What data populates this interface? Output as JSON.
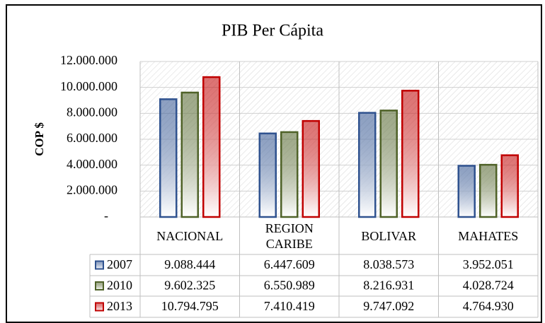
{
  "chart_data": {
    "type": "bar",
    "title": "PIB Per Cápita",
    "y_label": "COP $",
    "categories": [
      "NACIONAL",
      "REGION CARIBE",
      "BOLIVAR",
      "MAHATES"
    ],
    "series": [
      {
        "name": "2007",
        "color": "#2f528f",
        "values": [
          9088444,
          6447609,
          8038573,
          3952051
        ],
        "value_labels": [
          "9.088.444",
          "6.447.609",
          "8.038.573",
          "3.952.051"
        ]
      },
      {
        "name": "2010",
        "color": "#4f6228",
        "values": [
          9602325,
          6550989,
          8216931,
          4028724
        ],
        "value_labels": [
          "9.602.325",
          "6.550.989",
          "8.216.931",
          "4.028.724"
        ]
      },
      {
        "name": "2013",
        "color": "#c00000",
        "values": [
          10794795,
          7410419,
          9747092,
          4764930
        ],
        "value_labels": [
          "10.794.795",
          "7.410.419",
          "9.747.092",
          "4.764.930"
        ]
      }
    ],
    "ylim": [
      0,
      12000000
    ],
    "yticks": [
      {
        "value": 0,
        "label": "-"
      },
      {
        "value": 2000000,
        "label": "2.000.000"
      },
      {
        "value": 4000000,
        "label": "4.000.000"
      },
      {
        "value": 6000000,
        "label": "6.000.000"
      },
      {
        "value": 8000000,
        "label": "8.000.000"
      },
      {
        "value": 10000000,
        "label": "10.000.000"
      },
      {
        "value": 12000000,
        "label": "12.000.000"
      }
    ],
    "grid": true
  }
}
